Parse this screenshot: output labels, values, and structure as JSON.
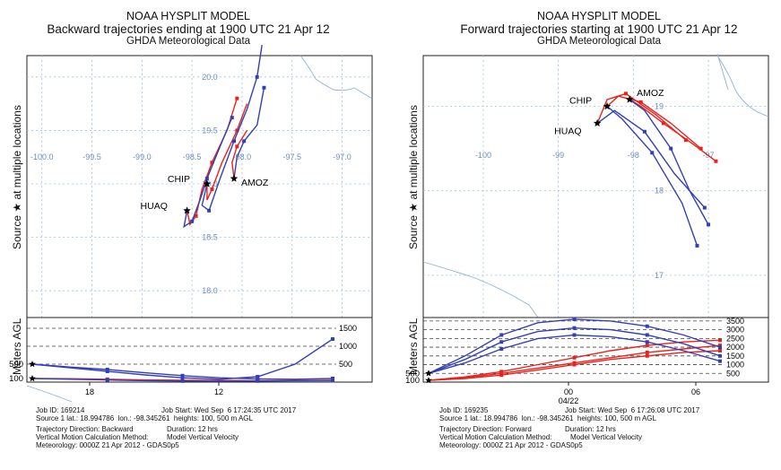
{
  "chart_data": [
    {
      "type": "line",
      "model": "NOAA HYSPLIT MODEL",
      "title": "Backward trajectories ending at 1900 UTC 21 Apr 12",
      "subtitle": "GHDA Meteorological Data",
      "ylabel_main": "Source ★ at multiple locations",
      "ylabel_height": "Meters AGL",
      "lon_ticks": [
        -100.0,
        -99.5,
        -99.0,
        -98.5,
        -98.0,
        -97.5,
        -97.0
      ],
      "lon_labels": [
        "-100.0",
        "-99.5",
        "-99.0",
        "-98.5",
        "-98.0",
        "-97.5",
        "-97.0"
      ],
      "lat_ticks": [
        18.0,
        18.5,
        19.0,
        19.5,
        20.0
      ],
      "lat_labels": [
        "18.0",
        "18.5",
        "19.0",
        "19.5",
        "20.0"
      ],
      "lon_range": [
        -100.15,
        -96.7
      ],
      "lat_range": [
        17.75,
        20.2
      ],
      "sources": [
        {
          "name": "CHIP",
          "lon": -98.35,
          "lat": 19.0
        },
        {
          "name": "AMOZ",
          "lon": -98.08,
          "lat": 19.05
        },
        {
          "name": "HUAQ",
          "lon": -98.55,
          "lat": 18.75
        }
      ],
      "series": [
        {
          "name": "HUAQ 100 m",
          "color": "#e8221c",
          "points": [
            [
              -98.55,
              18.75
            ],
            [
              -98.52,
              18.62
            ],
            [
              -98.46,
              18.7
            ],
            [
              -98.4,
              18.95
            ],
            [
              -98.3,
              19.2
            ],
            [
              -98.15,
              19.5
            ],
            [
              -98.05,
              19.8
            ]
          ]
        },
        {
          "name": "HUAQ 500 m",
          "color": "#3340b5",
          "points": [
            [
              -98.55,
              18.75
            ],
            [
              -98.58,
              18.6
            ],
            [
              -98.5,
              18.65
            ],
            [
              -98.42,
              18.85
            ],
            [
              -98.35,
              19.05
            ],
            [
              -98.22,
              19.35
            ],
            [
              -98.1,
              19.62
            ]
          ]
        },
        {
          "name": "CHIP 100 m",
          "color": "#e8221c",
          "points": [
            [
              -98.35,
              19.0
            ],
            [
              -98.35,
              18.85
            ],
            [
              -98.3,
              18.95
            ],
            [
              -98.2,
              19.2
            ],
            [
              -98.05,
              19.5
            ],
            [
              -97.95,
              19.75
            ]
          ]
        },
        {
          "name": "CHIP 500 m",
          "color": "#3340b5",
          "points": [
            [
              -98.35,
              19.0
            ],
            [
              -98.4,
              18.8
            ],
            [
              -98.33,
              18.75
            ],
            [
              -98.22,
              19.05
            ],
            [
              -98.08,
              19.4
            ],
            [
              -97.95,
              19.7
            ],
            [
              -97.85,
              20.0
            ],
            [
              -97.8,
              20.3
            ]
          ]
        },
        {
          "name": "AMOZ 100 m",
          "color": "#e8221c",
          "points": [
            [
              -98.08,
              19.05
            ],
            [
              -98.1,
              19.2
            ],
            [
              -98.05,
              19.35
            ],
            [
              -97.95,
              19.5
            ]
          ]
        },
        {
          "name": "AMOZ 500 m",
          "color": "#3340b5",
          "points": [
            [
              -98.08,
              19.05
            ],
            [
              -98.05,
              19.25
            ],
            [
              -97.98,
              19.4
            ],
            [
              -97.85,
              19.55
            ],
            [
              -97.78,
              19.9
            ]
          ]
        }
      ],
      "height_ticks": [
        500,
        1000,
        1500
      ],
      "height_range": [
        0,
        1800
      ],
      "time_labels": [
        "18",
        "12"
      ],
      "height_series": [
        {
          "name": "100 m",
          "color": "#e8221c",
          "values": [
            100,
            95,
            80,
            60,
            50,
            45,
            40,
            45,
            50
          ]
        },
        {
          "name": "500 m A",
          "color": "#3340b5",
          "values": [
            500,
            400,
            300,
            200,
            120,
            80,
            150,
            500,
            1200
          ]
        },
        {
          "name": "500 m B",
          "color": "#3340b5",
          "values": [
            500,
            420,
            350,
            260,
            180,
            120,
            90,
            80,
            100
          ]
        },
        {
          "name": "100 m B",
          "color": "#3340b5",
          "values": [
            100,
            80,
            60,
            40,
            30,
            25,
            30,
            35,
            40
          ]
        }
      ],
      "start_heights": [
        "500",
        "100"
      ],
      "footer": {
        "job_id": "Job ID: 169214",
        "job_start": "Job Start: Wed Sep  6 17:24:35 UTC 2017",
        "source_line": "Source 1 lat.: 18.994786  lon.: -98.345261  heights: 100, 500 m AGL",
        "direction": "Trajectory Direction: Backward",
        "duration": "Duration: 12 hrs",
        "vertical": "Vertical Motion Calculation Method:",
        "vertical_value": "Model Vertical Velocity",
        "meteorology": "Meteorology: 0000Z 21 Apr 2012 - GDAS0p5"
      }
    },
    {
      "type": "line",
      "model": "NOAA HYSPLIT MODEL",
      "title": "Forward trajectories starting at 1900 UTC 21 Apr 12",
      "subtitle": "GHDA Meteorological Data",
      "ylabel_main": "Source ★ at multiple locations",
      "ylabel_height": "Meters AGL",
      "lon_ticks": [
        -100,
        -99,
        -98,
        -97
      ],
      "lon_labels": [
        "-100",
        "-99",
        "-98",
        "-97"
      ],
      "lat_ticks": [
        17,
        18,
        19
      ],
      "lat_labels": [
        "17",
        "18",
        "19"
      ],
      "lon_range": [
        -100.8,
        -96.2
      ],
      "lat_range": [
        16.5,
        19.6
      ],
      "sources": [
        {
          "name": "CHIP",
          "lon": -98.35,
          "lat": 19.0
        },
        {
          "name": "AMOZ",
          "lon": -98.05,
          "lat": 19.08
        },
        {
          "name": "HUAQ",
          "lon": -98.48,
          "lat": 18.8
        }
      ],
      "series": [
        {
          "name": "AMOZ 100 m",
          "color": "#e8221c",
          "points": [
            [
              -98.05,
              19.08
            ],
            [
              -97.9,
              19.0
            ],
            [
              -97.6,
              18.8
            ],
            [
              -97.2,
              18.55
            ],
            [
              -96.9,
              18.35
            ]
          ]
        },
        {
          "name": "CHIP 100 m",
          "color": "#e8221c",
          "points": [
            [
              -98.35,
              19.0
            ],
            [
              -98.2,
              19.12
            ],
            [
              -97.9,
              19.05
            ],
            [
              -97.5,
              18.8
            ],
            [
              -97.1,
              18.5
            ]
          ]
        },
        {
          "name": "HUAQ 100 m",
          "color": "#e8221c",
          "points": [
            [
              -98.48,
              18.8
            ],
            [
              -98.35,
              19.08
            ],
            [
              -98.1,
              19.15
            ],
            [
              -97.7,
              18.9
            ],
            [
              -97.3,
              18.6
            ]
          ]
        },
        {
          "name": "AMOZ 500 m",
          "color": "#3340b5",
          "points": [
            [
              -98.05,
              19.08
            ],
            [
              -97.85,
              18.95
            ],
            [
              -97.5,
              18.5
            ],
            [
              -97.25,
              18.0
            ],
            [
              -97.0,
              17.6
            ]
          ]
        },
        {
          "name": "CHIP 500 m",
          "color": "#3340b5",
          "points": [
            [
              -98.35,
              19.0
            ],
            [
              -98.15,
              18.85
            ],
            [
              -97.75,
              18.45
            ],
            [
              -97.35,
              17.85
            ],
            [
              -97.15,
              17.35
            ]
          ]
        },
        {
          "name": "HUAQ 500 m",
          "color": "#3340b5",
          "points": [
            [
              -98.48,
              18.8
            ],
            [
              -98.25,
              18.95
            ],
            [
              -97.85,
              18.7
            ],
            [
              -97.45,
              18.2
            ],
            [
              -97.05,
              17.8
            ]
          ]
        }
      ],
      "height_ticks": [
        500,
        1000,
        1500,
        2000,
        2500,
        3000,
        3500
      ],
      "height_range": [
        0,
        3700
      ],
      "time_labels": [
        "00",
        "04/22",
        "06"
      ],
      "height_series": [
        {
          "name": "100 m A",
          "color": "#e8221c",
          "values": [
            100,
            300,
            600,
            1000,
            1400,
            1800,
            2100,
            2300,
            2400
          ]
        },
        {
          "name": "100 m B",
          "color": "#e8221c",
          "values": [
            100,
            250,
            500,
            800,
            1100,
            1400,
            1700,
            1900,
            2100
          ]
        },
        {
          "name": "100 m C",
          "color": "#e8221c",
          "values": [
            100,
            200,
            400,
            700,
            1000,
            1300,
            1500,
            1700,
            1800
          ]
        },
        {
          "name": "500 m A",
          "color": "#3340b5",
          "values": [
            500,
            1500,
            2700,
            3400,
            3600,
            3500,
            3200,
            2700,
            2000
          ]
        },
        {
          "name": "500 m B",
          "color": "#3340b5",
          "values": [
            500,
            1300,
            2300,
            2900,
            3100,
            3000,
            2700,
            2200,
            1500
          ]
        },
        {
          "name": "500 m C",
          "color": "#3340b5",
          "values": [
            500,
            1100,
            1900,
            2500,
            2700,
            2600,
            2300,
            1800,
            1200
          ]
        }
      ],
      "start_heights": [
        "500",
        "100"
      ],
      "footer": {
        "job_id": "Job ID: 169235",
        "job_start": "Job Start: Wed Sep  6 17:26:08 UTC 2017",
        "source_line": "Source 1 lat.: 18.994786  lon.: -98.345261  heights: 100, 500 m AGL",
        "direction": "Trajectory Direction: Forward",
        "duration": "Duration: 12 hrs",
        "vertical": "Vertical Motion Calculation Method:",
        "vertical_value": "Model Vertical Velocity",
        "meteorology": "Meteorology: 0000Z 21 Apr 2012 - GDAS0p5"
      }
    }
  ]
}
